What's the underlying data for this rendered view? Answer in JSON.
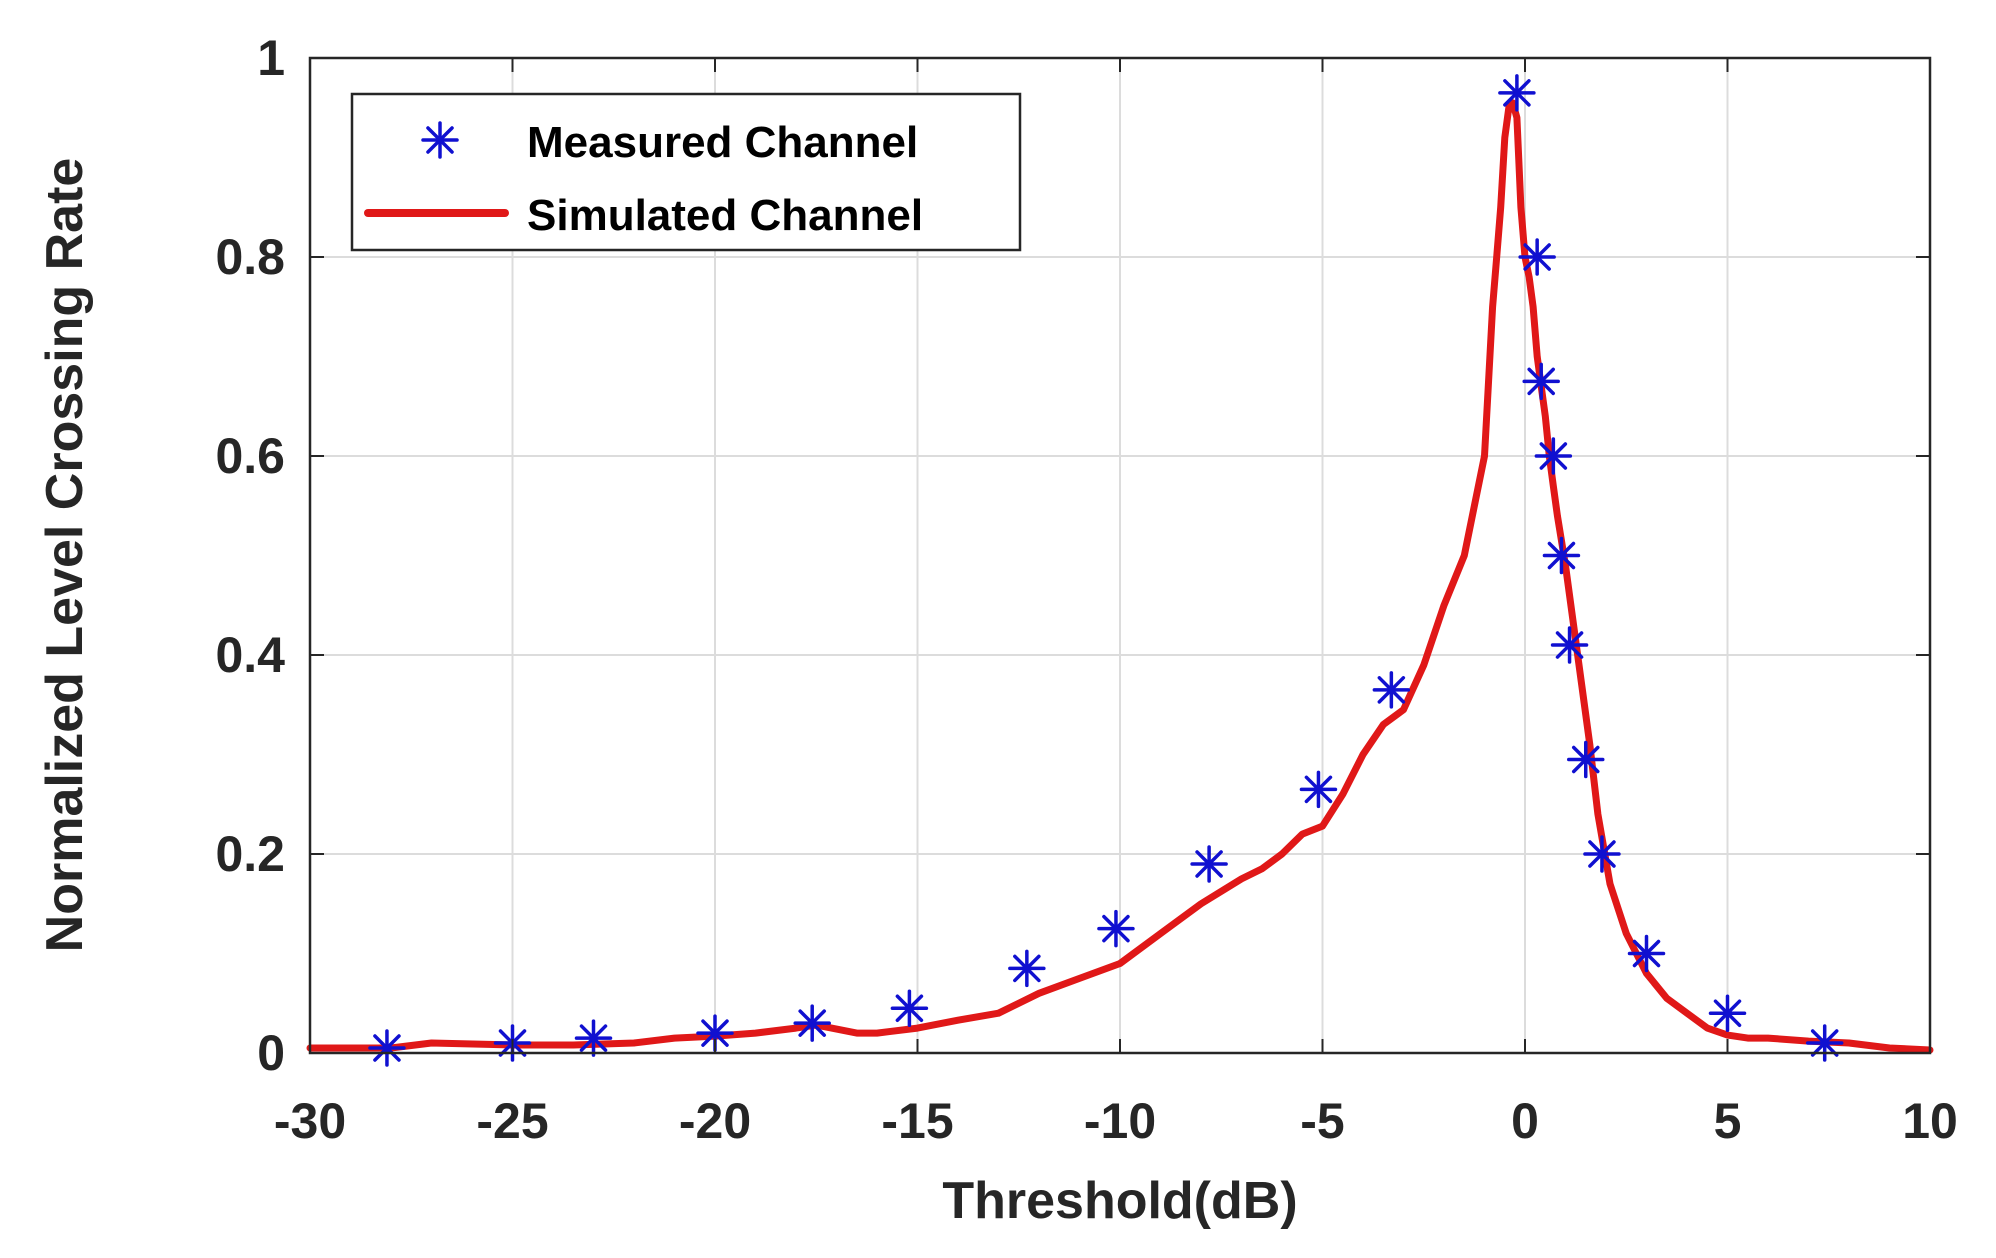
{
  "chart_data": {
    "type": "line",
    "title": "",
    "xlabel": "Threshold(dB)",
    "ylabel": "Normalized Level Crossing Rate",
    "xlim": [
      -30,
      10
    ],
    "ylim": [
      0,
      1
    ],
    "xticks": [
      -30,
      -25,
      -20,
      -15,
      -10,
      -5,
      0,
      5,
      10
    ],
    "xtick_labels": [
      "-30",
      "-25",
      "-20",
      "-15",
      "-10",
      "-5",
      "0",
      "5",
      "10"
    ],
    "yticks": [
      0,
      0.2,
      0.4,
      0.6,
      0.8,
      1
    ],
    "ytick_labels": [
      "0",
      "0.2",
      "0.4",
      "0.6",
      "0.8",
      "1"
    ],
    "grid": true,
    "legend_position": "top-left",
    "series": [
      {
        "name": "Measured Channel",
        "style": "markers",
        "marker": "asterisk",
        "color": "#1010d0",
        "x": [
          -28.1,
          -25,
          -23,
          -20,
          -17.6,
          -15.2,
          -12.3,
          -10.1,
          -7.8,
          -5.1,
          -3.3,
          -0.2,
          0.3,
          0.4,
          0.7,
          0.9,
          1.1,
          1.5,
          1.9,
          3,
          5,
          7.4
        ],
        "y": [
          0.005,
          0.01,
          0.015,
          0.02,
          0.03,
          0.045,
          0.085,
          0.125,
          0.19,
          0.265,
          0.365,
          0.965,
          0.8,
          0.675,
          0.6,
          0.5,
          0.41,
          0.295,
          0.2,
          0.1,
          0.04,
          0.01
        ]
      },
      {
        "name": "Simulated Channel",
        "style": "line",
        "color": "#e01818",
        "x": [
          -30,
          -28,
          -27,
          -25,
          -23.5,
          -22,
          -21,
          -20,
          -19,
          -18,
          -17.5,
          -16.5,
          -16,
          -15,
          -14,
          -13,
          -12,
          -11,
          -10,
          -9,
          -8,
          -7,
          -6.5,
          -6,
          -5.5,
          -5,
          -4.5,
          -4,
          -3.5,
          -3,
          -2.5,
          -2,
          -1.5,
          -1.2,
          -1,
          -0.8,
          -0.7,
          -0.6,
          -0.5,
          -0.4,
          -0.3,
          -0.2,
          -0.1,
          0,
          0.1,
          0.2,
          0.3,
          0.4,
          0.5,
          0.6,
          0.7,
          0.8,
          1,
          1.2,
          1.4,
          1.6,
          1.8,
          2.1,
          2.5,
          3,
          3.5,
          4,
          4.5,
          5,
          5.5,
          6,
          7,
          8,
          9,
          10
        ],
        "y": [
          0.005,
          0.005,
          0.01,
          0.008,
          0.008,
          0.01,
          0.015,
          0.017,
          0.02,
          0.025,
          0.028,
          0.02,
          0.02,
          0.025,
          0.033,
          0.04,
          0.06,
          0.075,
          0.09,
          0.12,
          0.15,
          0.175,
          0.185,
          0.2,
          0.22,
          0.228,
          0.26,
          0.3,
          0.33,
          0.345,
          0.39,
          0.45,
          0.5,
          0.56,
          0.6,
          0.75,
          0.8,
          0.85,
          0.92,
          0.95,
          0.955,
          0.94,
          0.85,
          0.8,
          0.78,
          0.75,
          0.7,
          0.67,
          0.64,
          0.6,
          0.57,
          0.54,
          0.49,
          0.43,
          0.37,
          0.31,
          0.24,
          0.17,
          0.12,
          0.08,
          0.055,
          0.04,
          0.025,
          0.018,
          0.015,
          0.015,
          0.012,
          0.01,
          0.005,
          0.003
        ]
      }
    ]
  }
}
